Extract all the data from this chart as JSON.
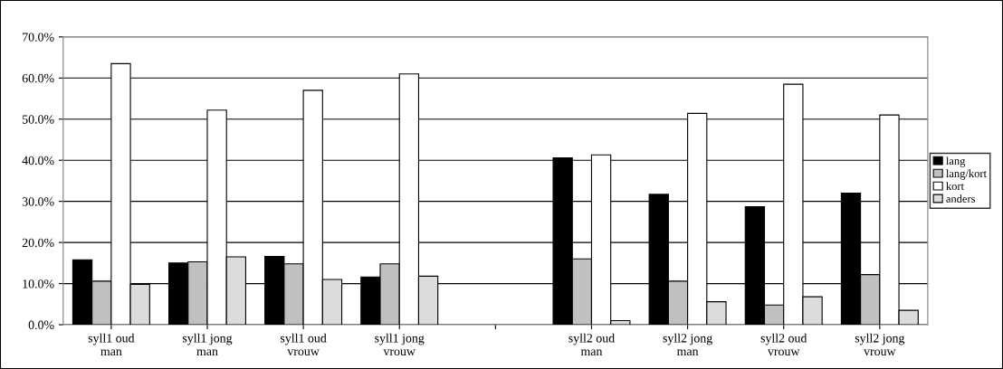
{
  "chart_data": {
    "type": "bar",
    "categories": [
      "syll1 oud\nman",
      "syll1 jong\nman",
      "syll1 oud\nvrouw",
      "syll1 jong\nvrouw",
      null,
      "syll2 oud\nman",
      "syll2 jong\nman",
      "syll2 oud\nvrouw",
      "syll2 jong\nvrouw"
    ],
    "series": [
      {
        "name": "lang",
        "color": "#000000",
        "values": [
          15.8,
          15.0,
          16.6,
          11.6,
          null,
          40.6,
          31.7,
          28.7,
          32.0
        ]
      },
      {
        "name": "lang/kort",
        "color": "#c0c0c0",
        "values": [
          10.6,
          15.3,
          14.8,
          14.8,
          null,
          16.0,
          10.6,
          4.8,
          12.2
        ]
      },
      {
        "name": "kort",
        "color": "#ffffff",
        "values": [
          63.5,
          52.2,
          57.0,
          61.0,
          null,
          41.3,
          51.4,
          58.5,
          51.0
        ]
      },
      {
        "name": "anders",
        "color": "#dcdcdc",
        "values": [
          9.8,
          16.5,
          11.0,
          11.8,
          null,
          1.0,
          5.6,
          6.8,
          3.5
        ]
      }
    ],
    "ylim": [
      0,
      70
    ],
    "yticks": [
      {
        "value": 0,
        "label": "0.0%"
      },
      {
        "value": 10,
        "label": "10.0%"
      },
      {
        "value": 20,
        "label": "20.0%"
      },
      {
        "value": 30,
        "label": "30.0%"
      },
      {
        "value": 40,
        "label": "40.0%"
      },
      {
        "value": 50,
        "label": "50.0%"
      },
      {
        "value": 60,
        "label": "60.0%"
      },
      {
        "value": 70,
        "label": "70.0%"
      }
    ],
    "grid": "y",
    "legend": "right"
  }
}
